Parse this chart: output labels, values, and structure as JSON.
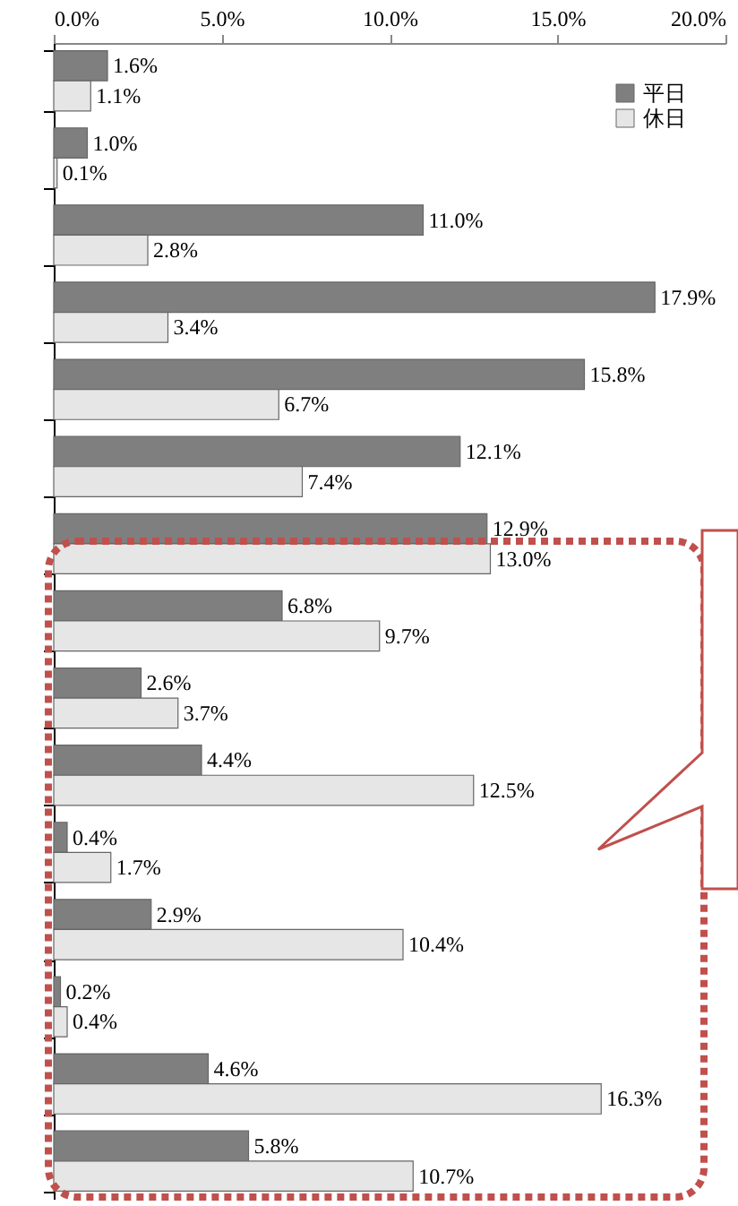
{
  "chart_data": {
    "type": "bar",
    "orientation": "horizontal",
    "categories": [
      null,
      null,
      null,
      null,
      null,
      null,
      null,
      null,
      null,
      null,
      null,
      null,
      null,
      null,
      null
    ],
    "series": [
      {
        "name": "平日",
        "color": "#7f7f7f",
        "values": [
          1.6,
          1.0,
          11.0,
          17.9,
          15.8,
          12.1,
          12.9,
          6.8,
          2.6,
          4.4,
          0.4,
          2.9,
          0.2,
          4.6,
          5.8
        ],
        "value_labels": [
          "1.6%",
          "1.0%",
          "11.0%",
          "17.9%",
          "15.8%",
          "12.1%",
          "12.9%",
          "6.8%",
          "2.6%",
          "4.4%",
          "0.4%",
          "2.9%",
          "0.2%",
          "4.6%",
          "5.8%"
        ]
      },
      {
        "name": "休日",
        "color": "#e6e6e6",
        "values": [
          1.1,
          0.1,
          2.8,
          3.4,
          6.7,
          7.4,
          13.0,
          9.7,
          3.7,
          12.5,
          1.7,
          10.4,
          0.4,
          16.3,
          10.7
        ],
        "value_labels": [
          "1.1%",
          "0.1%",
          "2.8%",
          "3.4%",
          "6.7%",
          "7.4%",
          "13.0%",
          "9.7%",
          "3.7%",
          "12.5%",
          "1.7%",
          "10.4%",
          "0.4%",
          "16.3%",
          "10.7%"
        ]
      }
    ],
    "xlim": [
      0,
      20
    ],
    "xticks": [
      {
        "value": 0,
        "label": "0.0%"
      },
      {
        "value": 5,
        "label": "5.0%"
      },
      {
        "value": 10,
        "label": "10.0%"
      },
      {
        "value": 15,
        "label": "15.0%"
      },
      {
        "value": 20,
        "label": "20.0%"
      }
    ],
    "legend": "top right",
    "grid": false
  }
}
